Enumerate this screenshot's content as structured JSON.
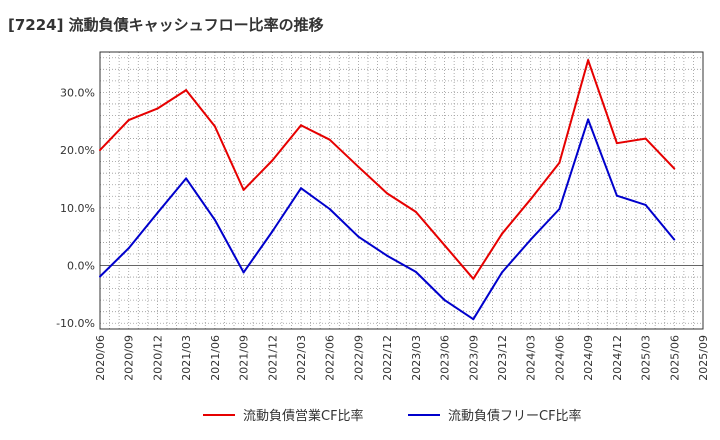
{
  "title": "[7224]  流動負債キャッシュフロー比率の推移",
  "chart_data": {
    "type": "line",
    "x": [
      "2020/06",
      "2020/09",
      "2020/12",
      "2021/03",
      "2021/06",
      "2021/09",
      "2021/12",
      "2022/03",
      "2022/06",
      "2022/09",
      "2022/12",
      "2023/03",
      "2023/06",
      "2023/09",
      "2023/12",
      "2024/03",
      "2024/06",
      "2024/09",
      "2024/12",
      "2025/03",
      "2025/06",
      "2025/09"
    ],
    "y_ticks": [
      "30.0%",
      "20.0%",
      "10.0%",
      "0.0%",
      "-10.0%"
    ],
    "y_tick_values": [
      30,
      20,
      10,
      0,
      -10
    ],
    "ylim": [
      -11,
      37
    ],
    "grid": true,
    "legend_position": "bottom",
    "series": [
      {
        "name": "流動負債営業CF比率",
        "color": "#e60000",
        "values": [
          20.0,
          25.2,
          27.2,
          30.4,
          24.1,
          13.1,
          18.2,
          24.3,
          21.8,
          17.1,
          12.5,
          9.3,
          3.5,
          -2.3,
          5.5,
          11.5,
          17.8,
          35.6,
          21.2,
          22.0,
          16.8,
          null
        ]
      },
      {
        "name": "流動負債フリーCF比率",
        "color": "#0000cc",
        "values": [
          -1.9,
          3.0,
          9.1,
          15.1,
          7.9,
          -1.2,
          5.9,
          13.4,
          9.8,
          5.0,
          1.7,
          -1.1,
          -6.0,
          -9.3,
          -1.2,
          4.5,
          9.8,
          25.3,
          12.1,
          10.5,
          4.5,
          null
        ]
      }
    ]
  }
}
